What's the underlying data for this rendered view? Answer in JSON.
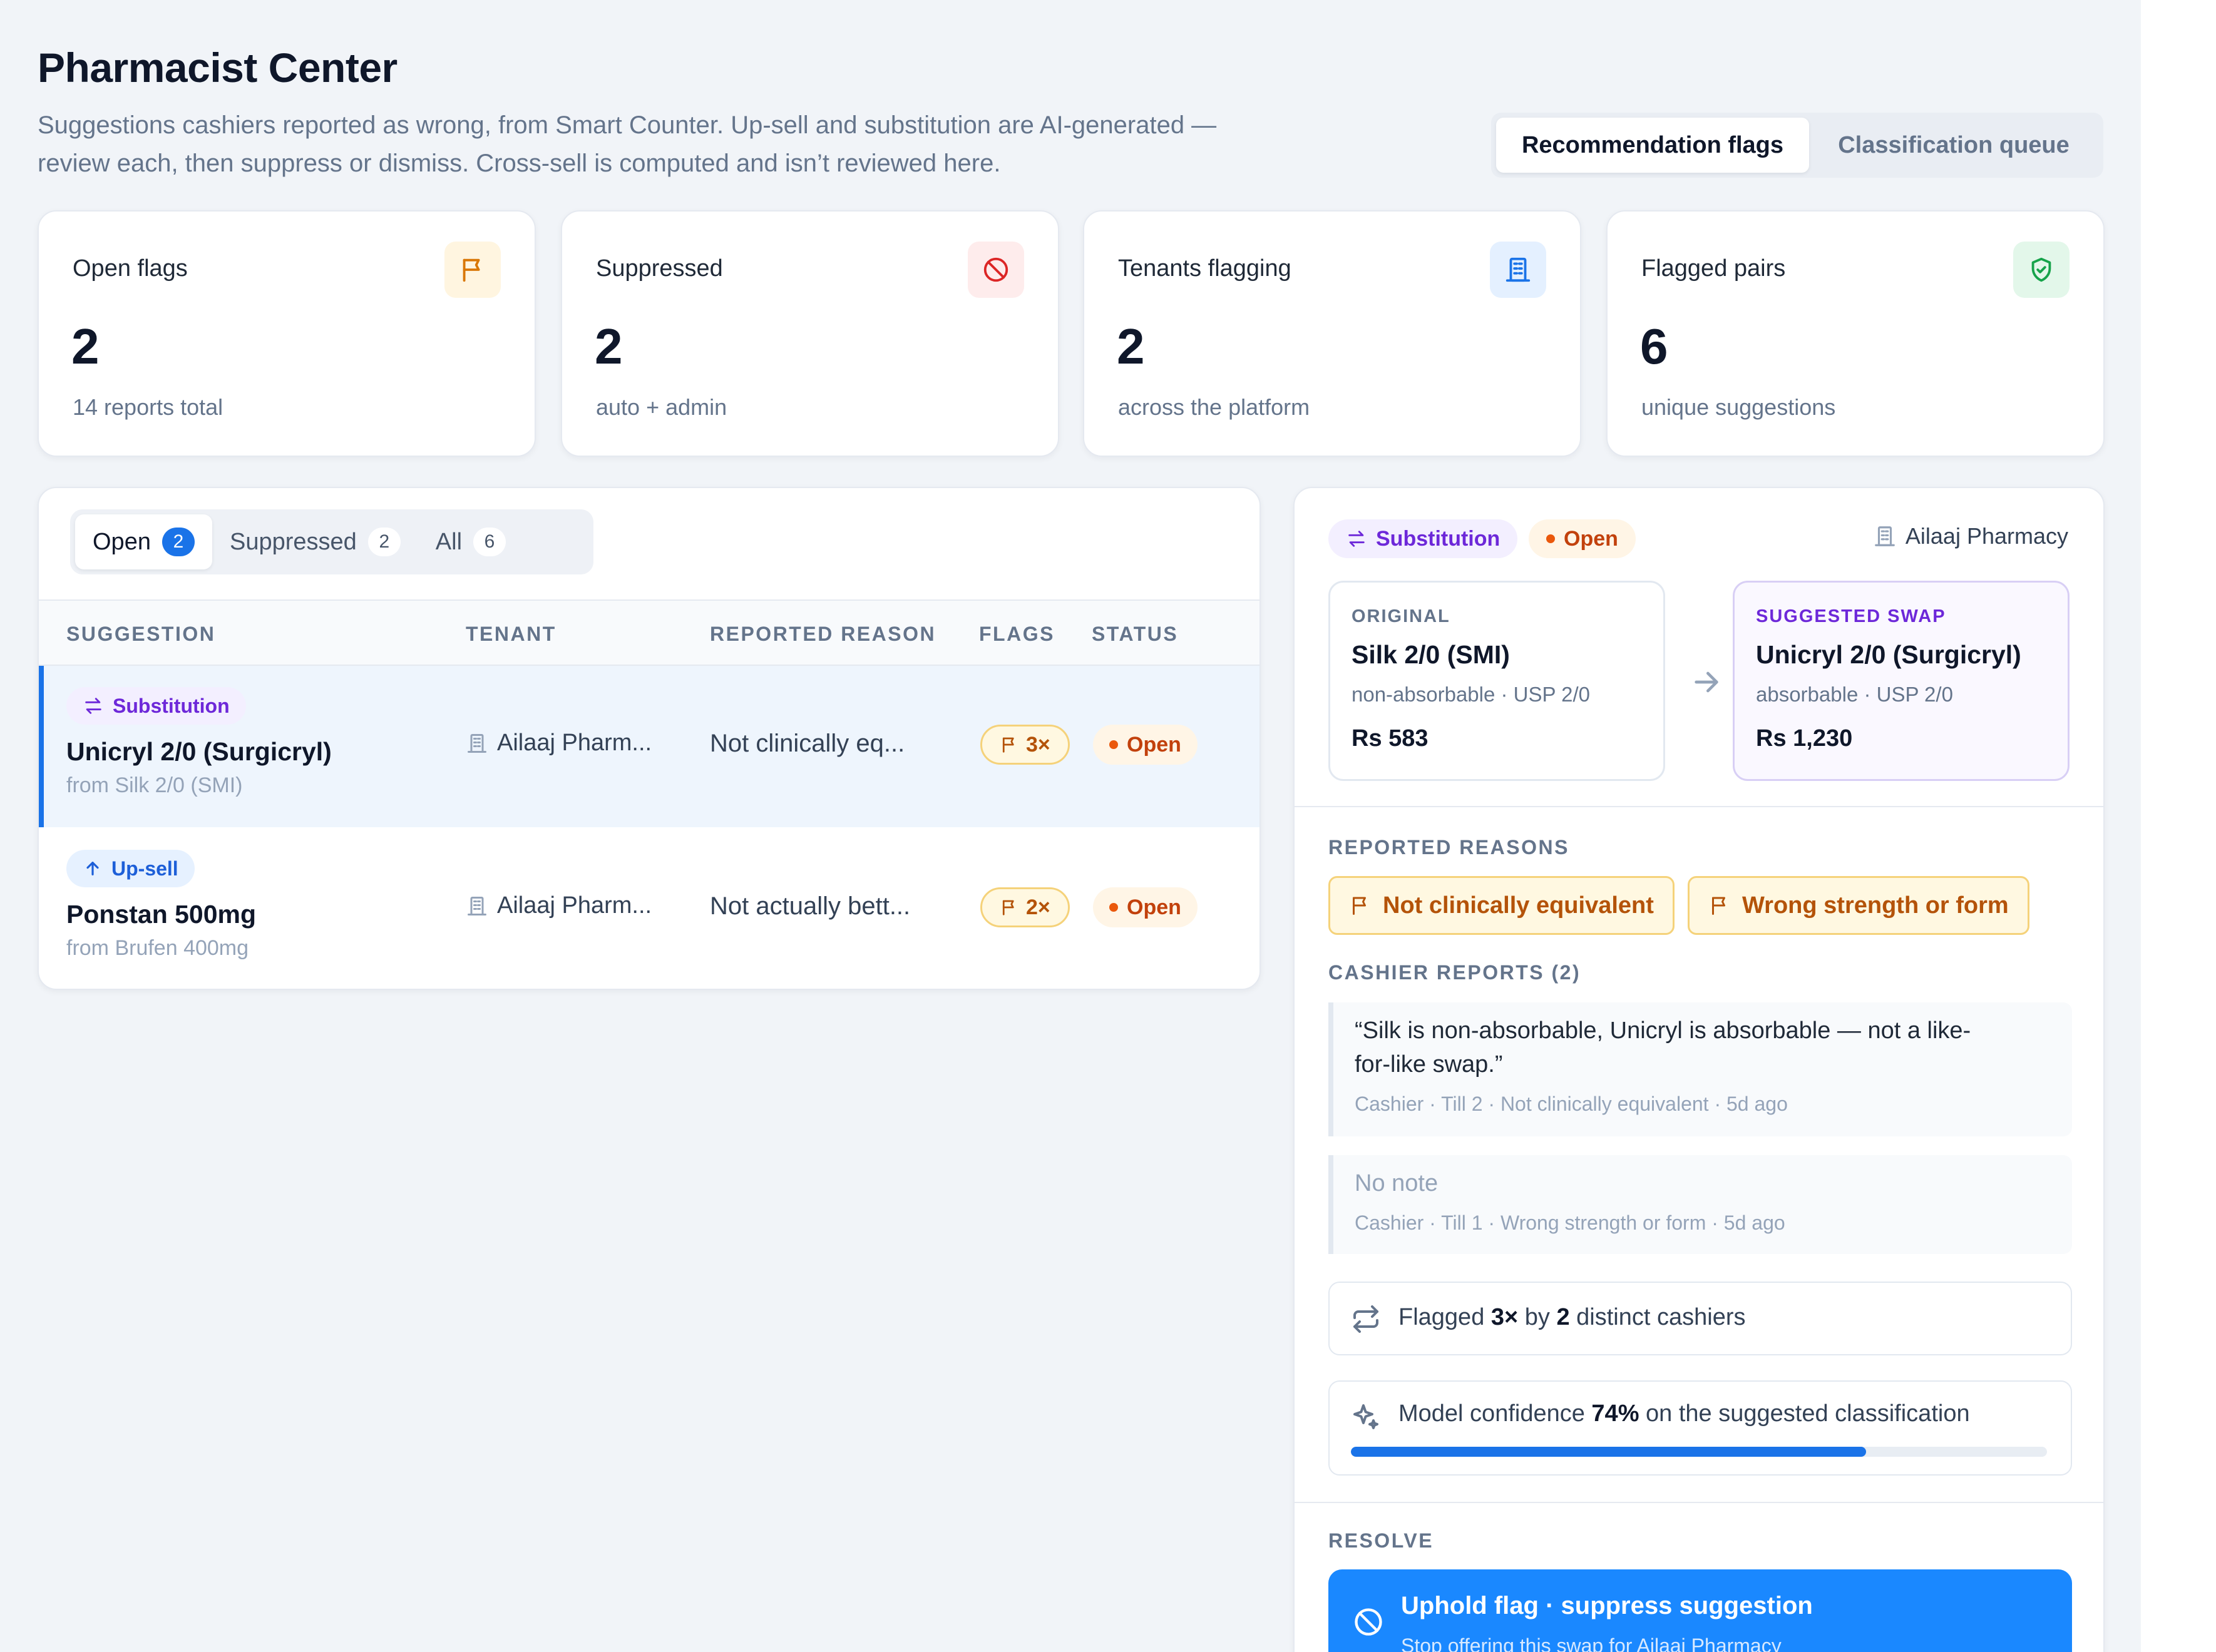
{
  "header": {
    "title": "Pharmacist Center",
    "subtitle_line1": "Suggestions cashiers reported as wrong, from Smart Counter. Up-sell and substitution are AI-generated —",
    "subtitle_line2": "review each, then suppress or dismiss. Cross-sell is computed and isn’t reviewed here.",
    "views": [
      "Recommendation flags",
      "Classification queue"
    ],
    "active_view": "Recommendation flags"
  },
  "stats": [
    {
      "label": "Open flags",
      "value": "2",
      "sub": "14 reports total",
      "icon": "flag-icon",
      "color": "#d97706"
    },
    {
      "label": "Suppressed",
      "value": "2",
      "sub": "auto + admin",
      "icon": "ban-icon",
      "color": "#dc2626"
    },
    {
      "label": "Tenants flagging",
      "value": "2",
      "sub": "across the platform",
      "icon": "building-icon",
      "color": "#1a73e8"
    },
    {
      "label": "Flagged pairs",
      "value": "6",
      "sub": "unique suggestions",
      "icon": "shield-check-icon",
      "color": "#16a34a"
    }
  ],
  "list": {
    "tabs": [
      {
        "label": "Open",
        "count": "2"
      },
      {
        "label": "Suppressed",
        "count": "2"
      },
      {
        "label": "All",
        "count": "6"
      }
    ],
    "columns": [
      "SUGGESTION",
      "TENANT",
      "REPORTED REASON",
      "FLAGS",
      "STATUS"
    ],
    "rows": [
      {
        "type": "Substitution",
        "name": "Unicryl 2/0 (Surgicryl)",
        "from": "from Silk 2/0 (SMI)",
        "tenant": "Ailaaj Pharm...",
        "reason": "Not clinically eq...",
        "flags": "3×",
        "status": "Open"
      },
      {
        "type": "Up-sell",
        "name": "Ponstan 500mg",
        "from": "from Brufen 400mg",
        "tenant": "Ailaaj Pharm...",
        "reason": "Not actually bett...",
        "flags": "2×",
        "status": "Open"
      }
    ]
  },
  "detail": {
    "type": "Substitution",
    "status": "Open",
    "tenant": "Ailaaj Pharmacy",
    "original": {
      "caption": "ORIGINAL",
      "name": "Silk 2/0 (SMI)",
      "meta": "non-absorbable · USP 2/0",
      "price": "Rs 583"
    },
    "suggested": {
      "caption": "SUGGESTED SWAP",
      "name": "Unicryl 2/0 (Surgicryl)",
      "meta": "absorbable · USP 2/0",
      "price": "Rs 1,230"
    },
    "reasons_title": "REPORTED REASONS",
    "reasons": [
      "Not clinically equivalent",
      "Wrong strength or form"
    ],
    "reports_title": "CASHIER REPORTS (2)",
    "reports": [
      {
        "quote_line1": "“Silk is non-absorbable, Unicryl is absorbable — not a like-",
        "quote_line2": "for-like swap.”",
        "meta": "Cashier · Till 2 · Not clinically equivalent · 5d ago"
      },
      {
        "quote_line1": "No note",
        "quote_line2": "",
        "meta": "Cashier · Till 1 · Wrong strength or form · 5d ago"
      }
    ],
    "flagged": {
      "pre": "Flagged ",
      "count": "3×",
      "mid": " by ",
      "cashiers": "2",
      "post": " distinct cashiers"
    },
    "confidence": {
      "pre": "Model confidence ",
      "value": "74%",
      "post": " on the suggested classification",
      "fraction": 0.74
    },
    "resolve_title": "RESOLVE",
    "cta": {
      "title": "Uphold flag · suppress suggestion",
      "sub": "Stop offering this swap for Ailaaj Pharmacy"
    }
  }
}
